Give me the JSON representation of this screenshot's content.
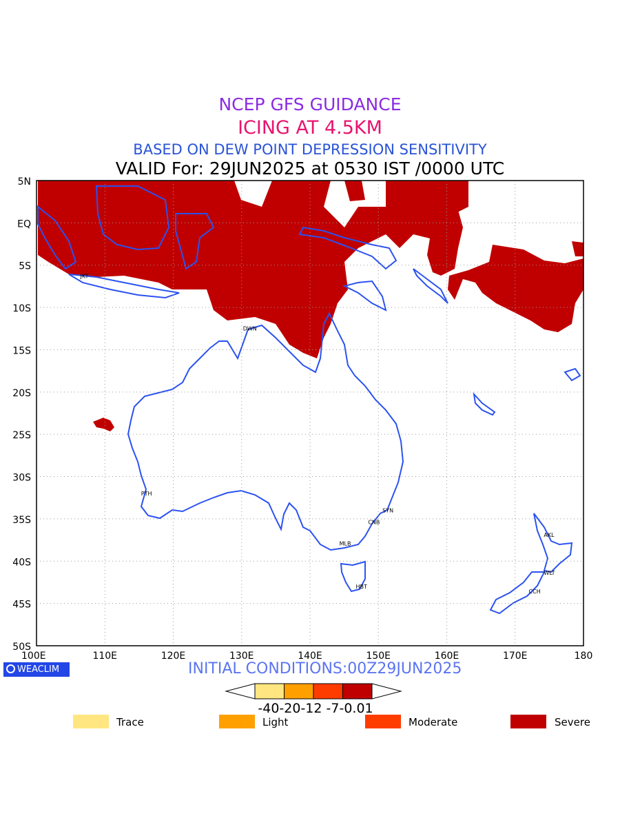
{
  "header": {
    "title": "NCEP GFS GUIDANCE",
    "subtitle": "ICING AT 4.5KM",
    "method": "BASED ON DEW POINT DEPRESSION SENSITIVITY",
    "valid": "VALID For: 29JUN2025 at 0530 IST /0000 UTC",
    "colors": {
      "title": "#8a2be2",
      "subtitle": "#e8136f",
      "method": "#2953d6",
      "valid": "#000000"
    }
  },
  "map": {
    "lon_range": [
      100,
      180
    ],
    "lat_range": [
      -50,
      5
    ],
    "x_ticks": [
      "100E",
      "110E",
      "120E",
      "130E",
      "140E",
      "150E",
      "160E",
      "170E",
      "180"
    ],
    "y_ticks": [
      "5N",
      "EQ",
      "5S",
      "10S",
      "15S",
      "20S",
      "25S",
      "30S",
      "35S",
      "40S",
      "45S",
      "50S"
    ],
    "grid": true,
    "coast_color": "#2a52f0",
    "icing_color": "#c00000",
    "cities": [
      {
        "label": "JKT",
        "lon": 107.0,
        "lat": -6.2
      },
      {
        "label": "DWN",
        "lon": 130.8,
        "lat": -12.4
      },
      {
        "label": "PTH",
        "lon": 115.9,
        "lat": -31.9
      },
      {
        "label": "SYN",
        "lon": 151.2,
        "lat": -33.9
      },
      {
        "label": "CNB",
        "lon": 149.1,
        "lat": -35.3
      },
      {
        "label": "MLB",
        "lon": 144.9,
        "lat": -37.8
      },
      {
        "label": "HBT",
        "lon": 147.3,
        "lat": -42.9
      },
      {
        "label": "AKL",
        "lon": 174.8,
        "lat": -36.8
      },
      {
        "label": "WLT",
        "lon": 174.8,
        "lat": -41.3
      },
      {
        "label": "CCH",
        "lon": 172.6,
        "lat": -43.5
      }
    ]
  },
  "footer": {
    "brand": "WEACLIM",
    "brand_icon": "weaclim-logo-icon",
    "brand_bg": "#2346e6",
    "initial_conditions": "INITIAL CONDITIONS:00Z29JUN2025"
  },
  "colorbar": {
    "thresholds": "-40-20-12 -7-0.01",
    "bins": [
      {
        "color": "#ffe680"
      },
      {
        "color": "#ffa000"
      },
      {
        "color": "#ff3c00"
      },
      {
        "color": "#c00000"
      }
    ]
  },
  "legend": [
    {
      "label": "Trace",
      "color": "#ffe680"
    },
    {
      "label": "Light",
      "color": "#ffa000"
    },
    {
      "label": "Moderate",
      "color": "#ff3c00"
    },
    {
      "label": "Severe",
      "color": "#c00000"
    }
  ]
}
